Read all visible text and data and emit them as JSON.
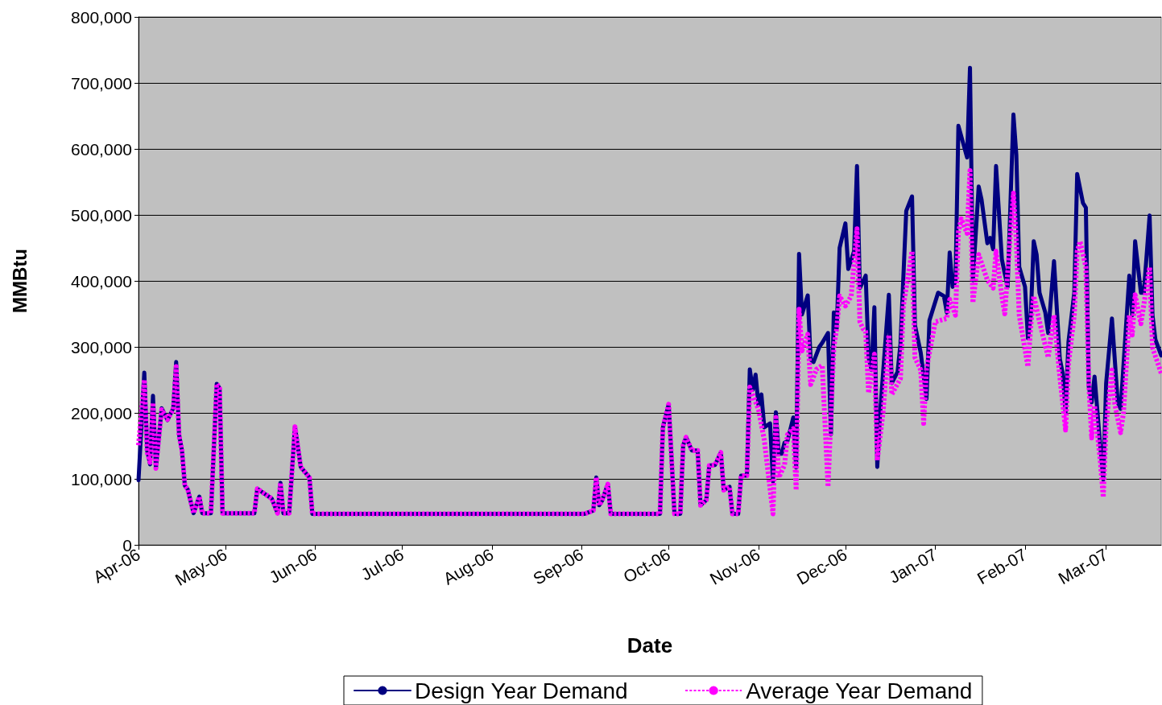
{
  "chart_data": {
    "type": "line",
    "xlabel": "Date",
    "ylabel": "MMBtu",
    "xlim": [
      "2006-04-01",
      "2007-03-20"
    ],
    "xticks": [
      {
        "value": "2006-04-01",
        "label": "Apr-06"
      },
      {
        "value": "2006-05-01",
        "label": "May-06"
      },
      {
        "value": "2006-06-01",
        "label": "Jun-06"
      },
      {
        "value": "2006-07-01",
        "label": "Jul-06"
      },
      {
        "value": "2006-08-01",
        "label": "Aug-06"
      },
      {
        "value": "2006-09-01",
        "label": "Sep-06"
      },
      {
        "value": "2006-10-01",
        "label": "Oct-06"
      },
      {
        "value": "2006-11-01",
        "label": "Nov-06"
      },
      {
        "value": "2006-12-01",
        "label": "Dec-06"
      },
      {
        "value": "2007-01-01",
        "label": "Jan-07"
      },
      {
        "value": "2007-02-01",
        "label": "Feb-07"
      },
      {
        "value": "2007-03-01",
        "label": "Mar-07"
      }
    ],
    "ylim": [
      0,
      800000
    ],
    "yticks": [
      0,
      {
        "value": 100000,
        "label": "100,000"
      },
      {
        "value": 200000,
        "label": "200,000"
      },
      {
        "value": 300000,
        "label": "300,000"
      },
      {
        "value": 400000,
        "label": "400,000"
      },
      {
        "value": 500000,
        "label": "500,000"
      },
      {
        "value": 600000,
        "label": "600,000"
      },
      {
        "value": 700000,
        "label": "700,000"
      },
      {
        "value": 800000,
        "label": "800,000"
      }
    ],
    "grid": "y",
    "legend": "bottom",
    "marker": "none",
    "series": [
      {
        "name": "Design Year Demand",
        "color": "#000080",
        "line_style": "solid",
        "x": [
          "2006-04-01",
          "2006-04-03",
          "2006-04-04",
          "2006-04-05",
          "2006-04-06",
          "2006-04-07",
          "2006-04-09",
          "2006-04-11",
          "2006-04-13",
          "2006-04-14",
          "2006-04-15",
          "2006-04-16",
          "2006-04-17",
          "2006-04-18",
          "2006-04-20",
          "2006-04-22",
          "2006-04-23",
          "2006-04-26",
          "2006-04-28",
          "2006-04-29",
          "2006-04-30",
          "2006-05-11",
          "2006-05-12",
          "2006-05-14",
          "2006-05-17",
          "2006-05-19",
          "2006-05-20",
          "2006-05-21",
          "2006-05-23",
          "2006-05-25",
          "2006-05-27",
          "2006-05-30",
          "2006-05-31",
          "2006-07-01",
          "2006-08-01",
          "2006-09-02",
          "2006-09-05",
          "2006-09-06",
          "2006-09-07",
          "2006-09-08",
          "2006-09-10",
          "2006-09-11",
          "2006-09-28",
          "2006-09-29",
          "2006-10-01",
          "2006-10-03",
          "2006-10-05",
          "2006-10-06",
          "2006-10-07",
          "2006-10-09",
          "2006-10-11",
          "2006-10-12",
          "2006-10-14",
          "2006-10-15",
          "2006-10-17",
          "2006-10-19",
          "2006-10-20",
          "2006-10-22",
          "2006-10-23",
          "2006-10-25",
          "2006-10-26",
          "2006-10-28",
          "2006-10-29",
          "2006-10-30",
          "2006-10-31",
          "2006-11-01",
          "2006-11-02",
          "2006-11-03",
          "2006-11-05",
          "2006-11-06",
          "2006-11-07",
          "2006-11-08",
          "2006-11-09",
          "2006-11-10",
          "2006-11-11",
          "2006-11-13",
          "2006-11-14",
          "2006-11-15",
          "2006-11-16",
          "2006-11-18",
          "2006-11-19",
          "2006-11-20",
          "2006-11-22",
          "2006-11-23",
          "2006-11-25",
          "2006-11-26",
          "2006-11-27",
          "2006-11-28",
          "2006-11-29",
          "2006-12-01",
          "2006-12-02",
          "2006-12-04",
          "2006-12-05",
          "2006-12-06",
          "2006-12-08",
          "2006-12-09",
          "2006-12-10",
          "2006-12-11",
          "2006-12-12",
          "2006-12-13",
          "2006-12-16",
          "2006-12-17",
          "2006-12-19",
          "2006-12-20",
          "2006-12-22",
          "2006-12-24",
          "2006-12-25",
          "2006-12-27",
          "2006-12-29",
          "2006-12-30",
          "2007-01-02",
          "2007-01-04",
          "2007-01-05",
          "2007-01-06",
          "2007-01-07",
          "2007-01-08",
          "2007-01-09",
          "2007-01-12",
          "2007-01-13",
          "2007-01-14",
          "2007-01-16",
          "2007-01-17",
          "2007-01-19",
          "2007-01-20",
          "2007-01-21",
          "2007-01-22",
          "2007-01-24",
          "2007-01-25",
          "2007-01-26",
          "2007-01-28",
          "2007-01-29",
          "2007-01-30",
          "2007-02-01",
          "2007-02-02",
          "2007-02-03",
          "2007-02-04",
          "2007-02-05",
          "2007-02-06",
          "2007-02-08",
          "2007-02-09",
          "2007-02-11",
          "2007-02-13",
          "2007-02-14",
          "2007-02-15",
          "2007-02-16",
          "2007-02-18",
          "2007-02-19",
          "2007-02-21",
          "2007-02-22",
          "2007-02-23",
          "2007-02-24",
          "2007-02-25",
          "2007-02-27",
          "2007-02-28",
          "2007-03-01",
          "2007-03-03",
          "2007-03-05",
          "2007-03-06",
          "2007-03-09",
          "2007-03-10",
          "2007-03-11",
          "2007-03-13",
          "2007-03-14",
          "2007-03-16",
          "2007-03-17",
          "2007-03-18",
          "2007-03-20"
        ],
        "values": [
          98000,
          261000,
          143000,
          122000,
          226000,
          116000,
          207000,
          189000,
          207000,
          277000,
          167000,
          143000,
          90000,
          84000,
          48000,
          73000,
          48000,
          48000,
          244000,
          237000,
          48000,
          48000,
          85000,
          79000,
          70000,
          48000,
          94000,
          48000,
          48000,
          179000,
          118000,
          102000,
          47000,
          47000,
          47000,
          47000,
          52000,
          102000,
          60000,
          67000,
          92000,
          47000,
          47000,
          178000,
          213000,
          47000,
          47000,
          151000,
          163000,
          143000,
          143000,
          60000,
          68000,
          120000,
          121000,
          140000,
          83000,
          88000,
          47000,
          47000,
          105000,
          105000,
          266000,
          235000,
          258000,
          212000,
          228000,
          178000,
          184000,
          96000,
          201000,
          138000,
          138000,
          155000,
          157000,
          193000,
          117000,
          441000,
          349000,
          378000,
          281000,
          277000,
          300000,
          306000,
          321000,
          167000,
          352000,
          328000,
          450000,
          487000,
          418000,
          445000,
          574000,
          389000,
          408000,
          284000,
          265000,
          360000,
          118000,
          201000,
          379000,
          245000,
          262000,
          304000,
          506000,
          528000,
          333000,
          291000,
          221000,
          340000,
          382000,
          377000,
          352000,
          443000,
          391000,
          399000,
          635000,
          587000,
          723000,
          401000,
          543000,
          523000,
          457000,
          465000,
          448000,
          574000,
          433000,
          411000,
          391000,
          652000,
          591000,
          421000,
          391000,
          313000,
          348000,
          460000,
          440000,
          382000,
          352000,
          321000,
          430000,
          282000,
          260000,
          201000,
          308000,
          382000,
          562000,
          518000,
          511000,
          240000,
          216000,
          255000,
          148000,
          99000,
          245000,
          343000,
          216000,
          206000,
          408000,
          348000,
          460000,
          382000,
          382000,
          499000,
          348000,
          311000,
          287000
        ]
      },
      {
        "name": "Average Year Demand",
        "color": "#ff00ff",
        "line_style": "dashed",
        "x": [
          "2006-04-01",
          "2006-04-03",
          "2006-04-04",
          "2006-04-05",
          "2006-04-06",
          "2006-04-07",
          "2006-04-09",
          "2006-04-11",
          "2006-04-13",
          "2006-04-14",
          "2006-04-15",
          "2006-04-16",
          "2006-04-17",
          "2006-04-18",
          "2006-04-20",
          "2006-04-22",
          "2006-04-23",
          "2006-04-26",
          "2006-04-28",
          "2006-04-29",
          "2006-04-30",
          "2006-05-11",
          "2006-05-12",
          "2006-05-14",
          "2006-05-17",
          "2006-05-19",
          "2006-05-20",
          "2006-05-21",
          "2006-05-23",
          "2006-05-25",
          "2006-05-27",
          "2006-05-30",
          "2006-05-31",
          "2006-07-01",
          "2006-08-01",
          "2006-09-02",
          "2006-09-05",
          "2006-09-06",
          "2006-09-07",
          "2006-09-08",
          "2006-09-10",
          "2006-09-11",
          "2006-09-28",
          "2006-09-29",
          "2006-10-01",
          "2006-10-03",
          "2006-10-05",
          "2006-10-06",
          "2006-10-07",
          "2006-10-09",
          "2006-10-11",
          "2006-10-12",
          "2006-10-14",
          "2006-10-15",
          "2006-10-17",
          "2006-10-19",
          "2006-10-20",
          "2006-10-22",
          "2006-10-23",
          "2006-10-25",
          "2006-10-26",
          "2006-10-28",
          "2006-10-29",
          "2006-11-01",
          "2006-11-03",
          "2006-11-06",
          "2006-11-07",
          "2006-11-08",
          "2006-11-10",
          "2006-11-11",
          "2006-11-13",
          "2006-11-14",
          "2006-11-15",
          "2006-11-16",
          "2006-11-18",
          "2006-11-19",
          "2006-11-21",
          "2006-11-23",
          "2006-11-25",
          "2006-11-27",
          "2006-11-28",
          "2006-11-29",
          "2006-12-01",
          "2006-12-03",
          "2006-12-05",
          "2006-12-06",
          "2006-12-07",
          "2006-12-08",
          "2006-12-09",
          "2006-12-11",
          "2006-12-12",
          "2006-12-14",
          "2006-12-16",
          "2006-12-17",
          "2006-12-20",
          "2006-12-21",
          "2006-12-24",
          "2006-12-25",
          "2006-12-27",
          "2006-12-28",
          "2006-12-29",
          "2007-01-01",
          "2007-01-05",
          "2007-01-06",
          "2007-01-08",
          "2007-01-09",
          "2007-01-10",
          "2007-01-12",
          "2007-01-13",
          "2007-01-14",
          "2007-01-16",
          "2007-01-19",
          "2007-01-21",
          "2007-01-22",
          "2007-01-24",
          "2007-01-25",
          "2007-01-27",
          "2007-01-28",
          "2007-01-29",
          "2007-01-30",
          "2007-02-02",
          "2007-02-03",
          "2007-02-04",
          "2007-02-06",
          "2007-02-09",
          "2007-02-11",
          "2007-02-13",
          "2007-02-15",
          "2007-02-16",
          "2007-02-18",
          "2007-02-19",
          "2007-02-20",
          "2007-02-22",
          "2007-02-23",
          "2007-02-24",
          "2007-02-25",
          "2007-02-27",
          "2007-02-28",
          "2007-03-01",
          "2007-03-03",
          "2007-03-04",
          "2007-03-06",
          "2007-03-07",
          "2007-03-09",
          "2007-03-10",
          "2007-03-11",
          "2007-03-13",
          "2007-03-16",
          "2007-03-17",
          "2007-03-20"
        ],
        "values": [
          151000,
          250000,
          140000,
          125000,
          215000,
          116000,
          205000,
          190000,
          205000,
          270000,
          165000,
          143000,
          90000,
          84000,
          48000,
          73000,
          48000,
          48000,
          244000,
          237000,
          48000,
          48000,
          85000,
          79000,
          70000,
          48000,
          94000,
          48000,
          48000,
          179000,
          118000,
          102000,
          47000,
          47000,
          47000,
          47000,
          52000,
          102000,
          60000,
          67000,
          92000,
          47000,
          47000,
          178000,
          213000,
          47000,
          47000,
          151000,
          163000,
          143000,
          143000,
          60000,
          68000,
          120000,
          121000,
          140000,
          83000,
          88000,
          47000,
          47000,
          105000,
          105000,
          239000,
          205000,
          159000,
          47000,
          193000,
          102000,
          121000,
          167000,
          176000,
          83000,
          357000,
          294000,
          319000,
          243000,
          266000,
          272000,
          88000,
          299000,
          328000,
          377000,
          362000,
          377000,
          479000,
          338000,
          328000,
          323000,
          230000,
          289000,
          128000,
          201000,
          318000,
          228000,
          252000,
          362000,
          445000,
          284000,
          265000,
          184000,
          267000,
          338000,
          343000,
          372000,
          348000,
          474000,
          494000,
          472000,
          567000,
          367000,
          440000,
          401000,
          389000,
          445000,
          377000,
          350000,
          474000,
          533000,
          460000,
          348000,
          270000,
          333000,
          377000,
          338000,
          284000,
          348000,
          255000,
          174000,
          274000,
          348000,
          445000,
          460000,
          421000,
          245000,
          162000,
          211000,
          126000,
          72000,
          182000,
          265000,
          213000,
          170000,
          201000,
          348000,
          318000,
          379000,
          335000,
          421000,
          299000,
          260000
        ]
      }
    ]
  }
}
